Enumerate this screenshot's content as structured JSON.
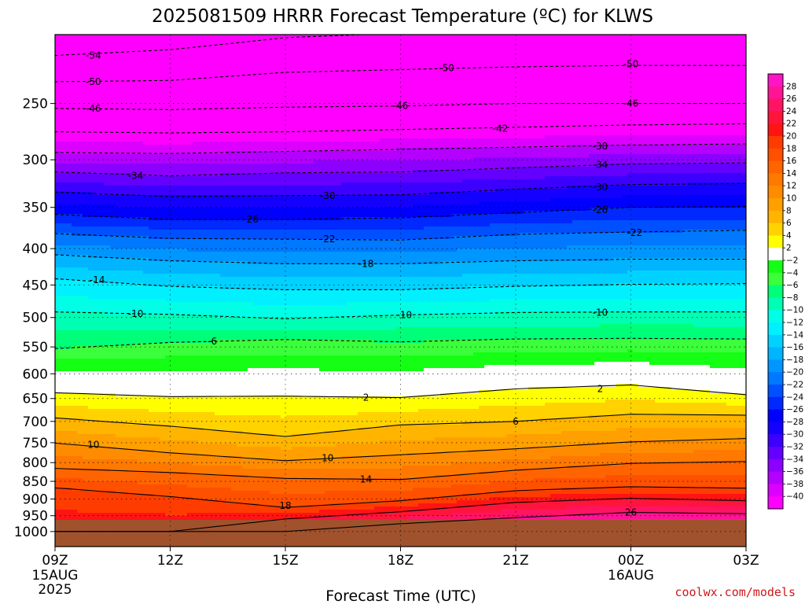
{
  "title": "2025081509 HRRR Forecast Temperature (ºC) for KLWS",
  "xlabel": "Forecast Time (UTC)",
  "credit": "coolwx.com/models",
  "chart_data": {
    "type": "heatmap",
    "variable": "Temperature (ºC)",
    "x_ticks": [
      {
        "hour": 0,
        "label": "09Z",
        "sub1": "15AUG",
        "sub2": "2025"
      },
      {
        "hour": 3,
        "label": "12Z",
        "sub1": "",
        "sub2": ""
      },
      {
        "hour": 6,
        "label": "15Z",
        "sub1": "",
        "sub2": ""
      },
      {
        "hour": 9,
        "label": "18Z",
        "sub1": "",
        "sub2": ""
      },
      {
        "hour": 12,
        "label": "21Z",
        "sub1": "",
        "sub2": ""
      },
      {
        "hour": 15,
        "label": "00Z",
        "sub1": "16AUG",
        "sub2": ""
      },
      {
        "hour": 18,
        "label": "03Z",
        "sub1": "",
        "sub2": ""
      }
    ],
    "xlim": [
      0,
      18
    ],
    "y_ticks": [
      250,
      300,
      350,
      400,
      450,
      500,
      550,
      600,
      650,
      700,
      750,
      800,
      850,
      900,
      950,
      1000
    ],
    "ylim": [
      1050,
      200
    ],
    "y_scale": "log",
    "surface_pressure": 963,
    "grid": true,
    "colorbar": {
      "levels": [
        28,
        26,
        24,
        22,
        20,
        18,
        16,
        14,
        12,
        10,
        8,
        6,
        4,
        2,
        -2,
        -4,
        -6,
        -8,
        -10,
        -12,
        -14,
        -16,
        -18,
        -20,
        -22,
        -24,
        -26,
        -28,
        -30,
        -32,
        -34,
        -36,
        -38,
        -40
      ],
      "colors": [
        "#ff14c8",
        "#ff1496",
        "#ff1464",
        "#ff143c",
        "#ff1414",
        "#ff3c00",
        "#ff5000",
        "#ff6400",
        "#ff7800",
        "#ff8c00",
        "#ffa000",
        "#ffb400",
        "#ffd200",
        "#ffff00",
        "#ffffff",
        "#14ff14",
        "#3cff3c",
        "#00ff78",
        "#00ffb4",
        "#00ffe6",
        "#00f0ff",
        "#00d2ff",
        "#00b4ff",
        "#0096ff",
        "#0078ff",
        "#0050ff",
        "#0028ff",
        "#0000ff",
        "#1400ff",
        "#3c00ff",
        "#6400ff",
        "#8c00ff",
        "#b400ff",
        "#dc00ff",
        "#ff00ff"
      ]
    },
    "profile_hours": [
      0,
      3,
      6,
      9,
      12,
      15,
      18
    ],
    "isotherms": [
      {
        "label": "-54",
        "pressure": [
          214,
          210,
          202,
          199,
          194,
          190,
          188
        ]
      },
      {
        "label": "-50",
        "pressure": [
          233,
          232,
          226,
          224,
          222,
          221,
          221
        ]
      },
      {
        "label": "-46",
        "pressure": [
          254,
          255,
          253,
          252,
          250,
          250,
          250
        ]
      },
      {
        "label": "-42",
        "pressure": [
          274,
          275,
          274,
          272,
          270,
          268,
          267
        ]
      },
      {
        "label": "-38",
        "pressure": [
          293,
          294,
          292,
          290,
          288,
          286,
          285
        ]
      },
      {
        "label": "-34",
        "pressure": [
          312,
          316,
          313,
          312,
          308,
          304,
          303
        ]
      },
      {
        "label": "-30",
        "pressure": [
          333,
          338,
          337,
          336,
          330,
          325,
          324
        ]
      },
      {
        "label": "-26",
        "pressure": [
          358,
          364,
          364,
          362,
          356,
          350,
          349
        ]
      },
      {
        "label": "-22",
        "pressure": [
          381,
          387,
          388,
          389,
          382,
          379,
          377
        ]
      },
      {
        "label": "-18",
        "pressure": [
          408,
          416,
          420,
          420,
          416,
          414,
          414
        ]
      },
      {
        "label": "-14",
        "pressure": [
          441,
          452,
          457,
          457,
          452,
          449,
          448
        ]
      },
      {
        "label": "-10",
        "pressure": [
          491,
          495,
          502,
          496,
          492,
          491,
          491
        ]
      },
      {
        "label": "-6",
        "pressure": [
          553,
          542,
          537,
          541,
          536,
          535,
          536
        ]
      },
      {
        "label": "2",
        "pressure": [
          638,
          646,
          645,
          648,
          630,
          622,
          642
        ]
      },
      {
        "label": "6",
        "pressure": [
          692,
          711,
          735,
          708,
          700,
          684,
          686
        ]
      },
      {
        "label": "10",
        "pressure": [
          751,
          775,
          795,
          780,
          765,
          748,
          740
        ]
      },
      {
        "label": "14",
        "pressure": [
          815,
          826,
          842,
          845,
          820,
          802,
          797
        ]
      },
      {
        "label": "18",
        "pressure": [
          868,
          893,
          925,
          905,
          876,
          865,
          869
        ]
      },
      {
        "label": "22",
        "pressure": [
          1000,
          1000,
          960,
          938,
          910,
          898,
          905
        ]
      },
      {
        "label": "26",
        "pressure": [
          1000,
          1000,
          1000,
          975,
          956,
          940,
          944
        ]
      }
    ],
    "clabels": [
      {
        "text": "-54",
        "hour": 1.0,
        "pressure": 214
      },
      {
        "text": "-50",
        "hour": 1.0,
        "pressure": 233
      },
      {
        "text": "-46",
        "hour": 1.0,
        "pressure": 254
      },
      {
        "text": "-50",
        "hour": 10.2,
        "pressure": 223
      },
      {
        "text": "-50",
        "hour": 15.0,
        "pressure": 220
      },
      {
        "text": "-46",
        "hour": 9.0,
        "pressure": 252
      },
      {
        "text": "-46",
        "hour": 15.0,
        "pressure": 250
      },
      {
        "text": "-42",
        "hour": 11.6,
        "pressure": 271
      },
      {
        "text": "-38",
        "hour": 14.2,
        "pressure": 287
      },
      {
        "text": "-34",
        "hour": 2.1,
        "pressure": 316
      },
      {
        "text": "-34",
        "hour": 14.2,
        "pressure": 305
      },
      {
        "text": "-30",
        "hour": 7.1,
        "pressure": 337
      },
      {
        "text": "-30",
        "hour": 14.2,
        "pressure": 328
      },
      {
        "text": "-26",
        "hour": 5.1,
        "pressure": 364
      },
      {
        "text": "-26",
        "hour": 14.2,
        "pressure": 353
      },
      {
        "text": "-22",
        "hour": 7.1,
        "pressure": 388
      },
      {
        "text": "-22",
        "hour": 15.1,
        "pressure": 380
      },
      {
        "text": "-18",
        "hour": 8.1,
        "pressure": 420
      },
      {
        "text": "-14",
        "hour": 1.1,
        "pressure": 443
      },
      {
        "text": "-10",
        "hour": 2.1,
        "pressure": 494
      },
      {
        "text": "-10",
        "hour": 9.1,
        "pressure": 496
      },
      {
        "text": "-10",
        "hour": 14.2,
        "pressure": 492
      },
      {
        "text": "-6",
        "hour": 4.1,
        "pressure": 540
      },
      {
        "text": "2",
        "hour": 8.1,
        "pressure": 648
      },
      {
        "text": "2",
        "hour": 14.2,
        "pressure": 630
      },
      {
        "text": "6",
        "hour": 12.0,
        "pressure": 700
      },
      {
        "text": "10",
        "hour": 1.0,
        "pressure": 755
      },
      {
        "text": "10",
        "hour": 7.1,
        "pressure": 788
      },
      {
        "text": "14",
        "hour": 8.1,
        "pressure": 845
      },
      {
        "text": "18",
        "hour": 6.0,
        "pressure": 920
      },
      {
        "text": "26",
        "hour": 15.0,
        "pressure": 940
      }
    ]
  }
}
